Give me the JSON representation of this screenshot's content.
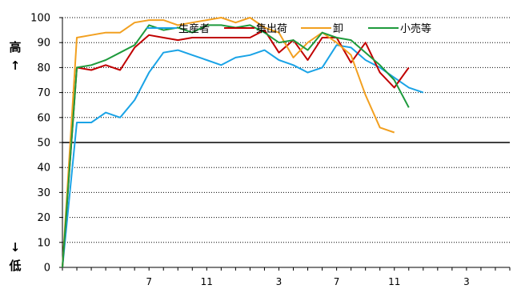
{
  "chart_data": {
    "type": "line",
    "title": "",
    "xlabel": "",
    "ylabel": "",
    "ylim": [
      0,
      100
    ],
    "yticks": [
      "0",
      "10",
      "20",
      "30",
      "40",
      "50",
      "60",
      "70",
      "80",
      "90",
      "100"
    ],
    "reference_line": 50,
    "grid": "horizontal-dotted",
    "y_side_labels": {
      "high": "高",
      "up_arrow": "↑",
      "down_arrow": "↓",
      "low": "低"
    },
    "x_count": 32,
    "xticks": [
      {
        "index": 6,
        "label": "7"
      },
      {
        "index": 10,
        "label": "11"
      },
      {
        "index": 15,
        "label": "3"
      },
      {
        "index": 19,
        "label": "7"
      },
      {
        "index": 23,
        "label": "11"
      },
      {
        "index": 28,
        "label": "3"
      }
    ],
    "legend_position": "top-center",
    "series": [
      {
        "name": "生産者",
        "color": "#1aa3e6",
        "values": [
          0,
          58,
          58,
          62,
          60,
          67,
          78,
          86,
          87,
          85,
          83,
          81,
          84,
          85,
          87,
          83,
          81,
          78,
          80,
          89,
          88,
          83,
          80,
          76,
          72,
          70
        ]
      },
      {
        "name": "集出荷",
        "color": "#c00000",
        "values": [
          0,
          80,
          79,
          81,
          79,
          88,
          93,
          92,
          91,
          92,
          92,
          92,
          92,
          92,
          95,
          86,
          91,
          83,
          92,
          92,
          82,
          90,
          78,
          72,
          80
        ]
      },
      {
        "name": "卸",
        "color": "#f2a020",
        "values": [
          0,
          92,
          93,
          94,
          94,
          98,
          99,
          99,
          97,
          98,
          99,
          100,
          98,
          100,
          96,
          94,
          84,
          90,
          94,
          90,
          85,
          69,
          56,
          54
        ]
      },
      {
        "name": "小売等",
        "color": "#1e9a3c",
        "values": [
          0,
          80,
          81,
          83,
          86,
          89,
          97,
          95,
          96,
          94,
          97,
          97,
          96,
          97,
          94,
          90,
          91,
          87,
          94,
          92,
          91,
          86,
          81,
          75,
          64
        ]
      }
    ]
  }
}
